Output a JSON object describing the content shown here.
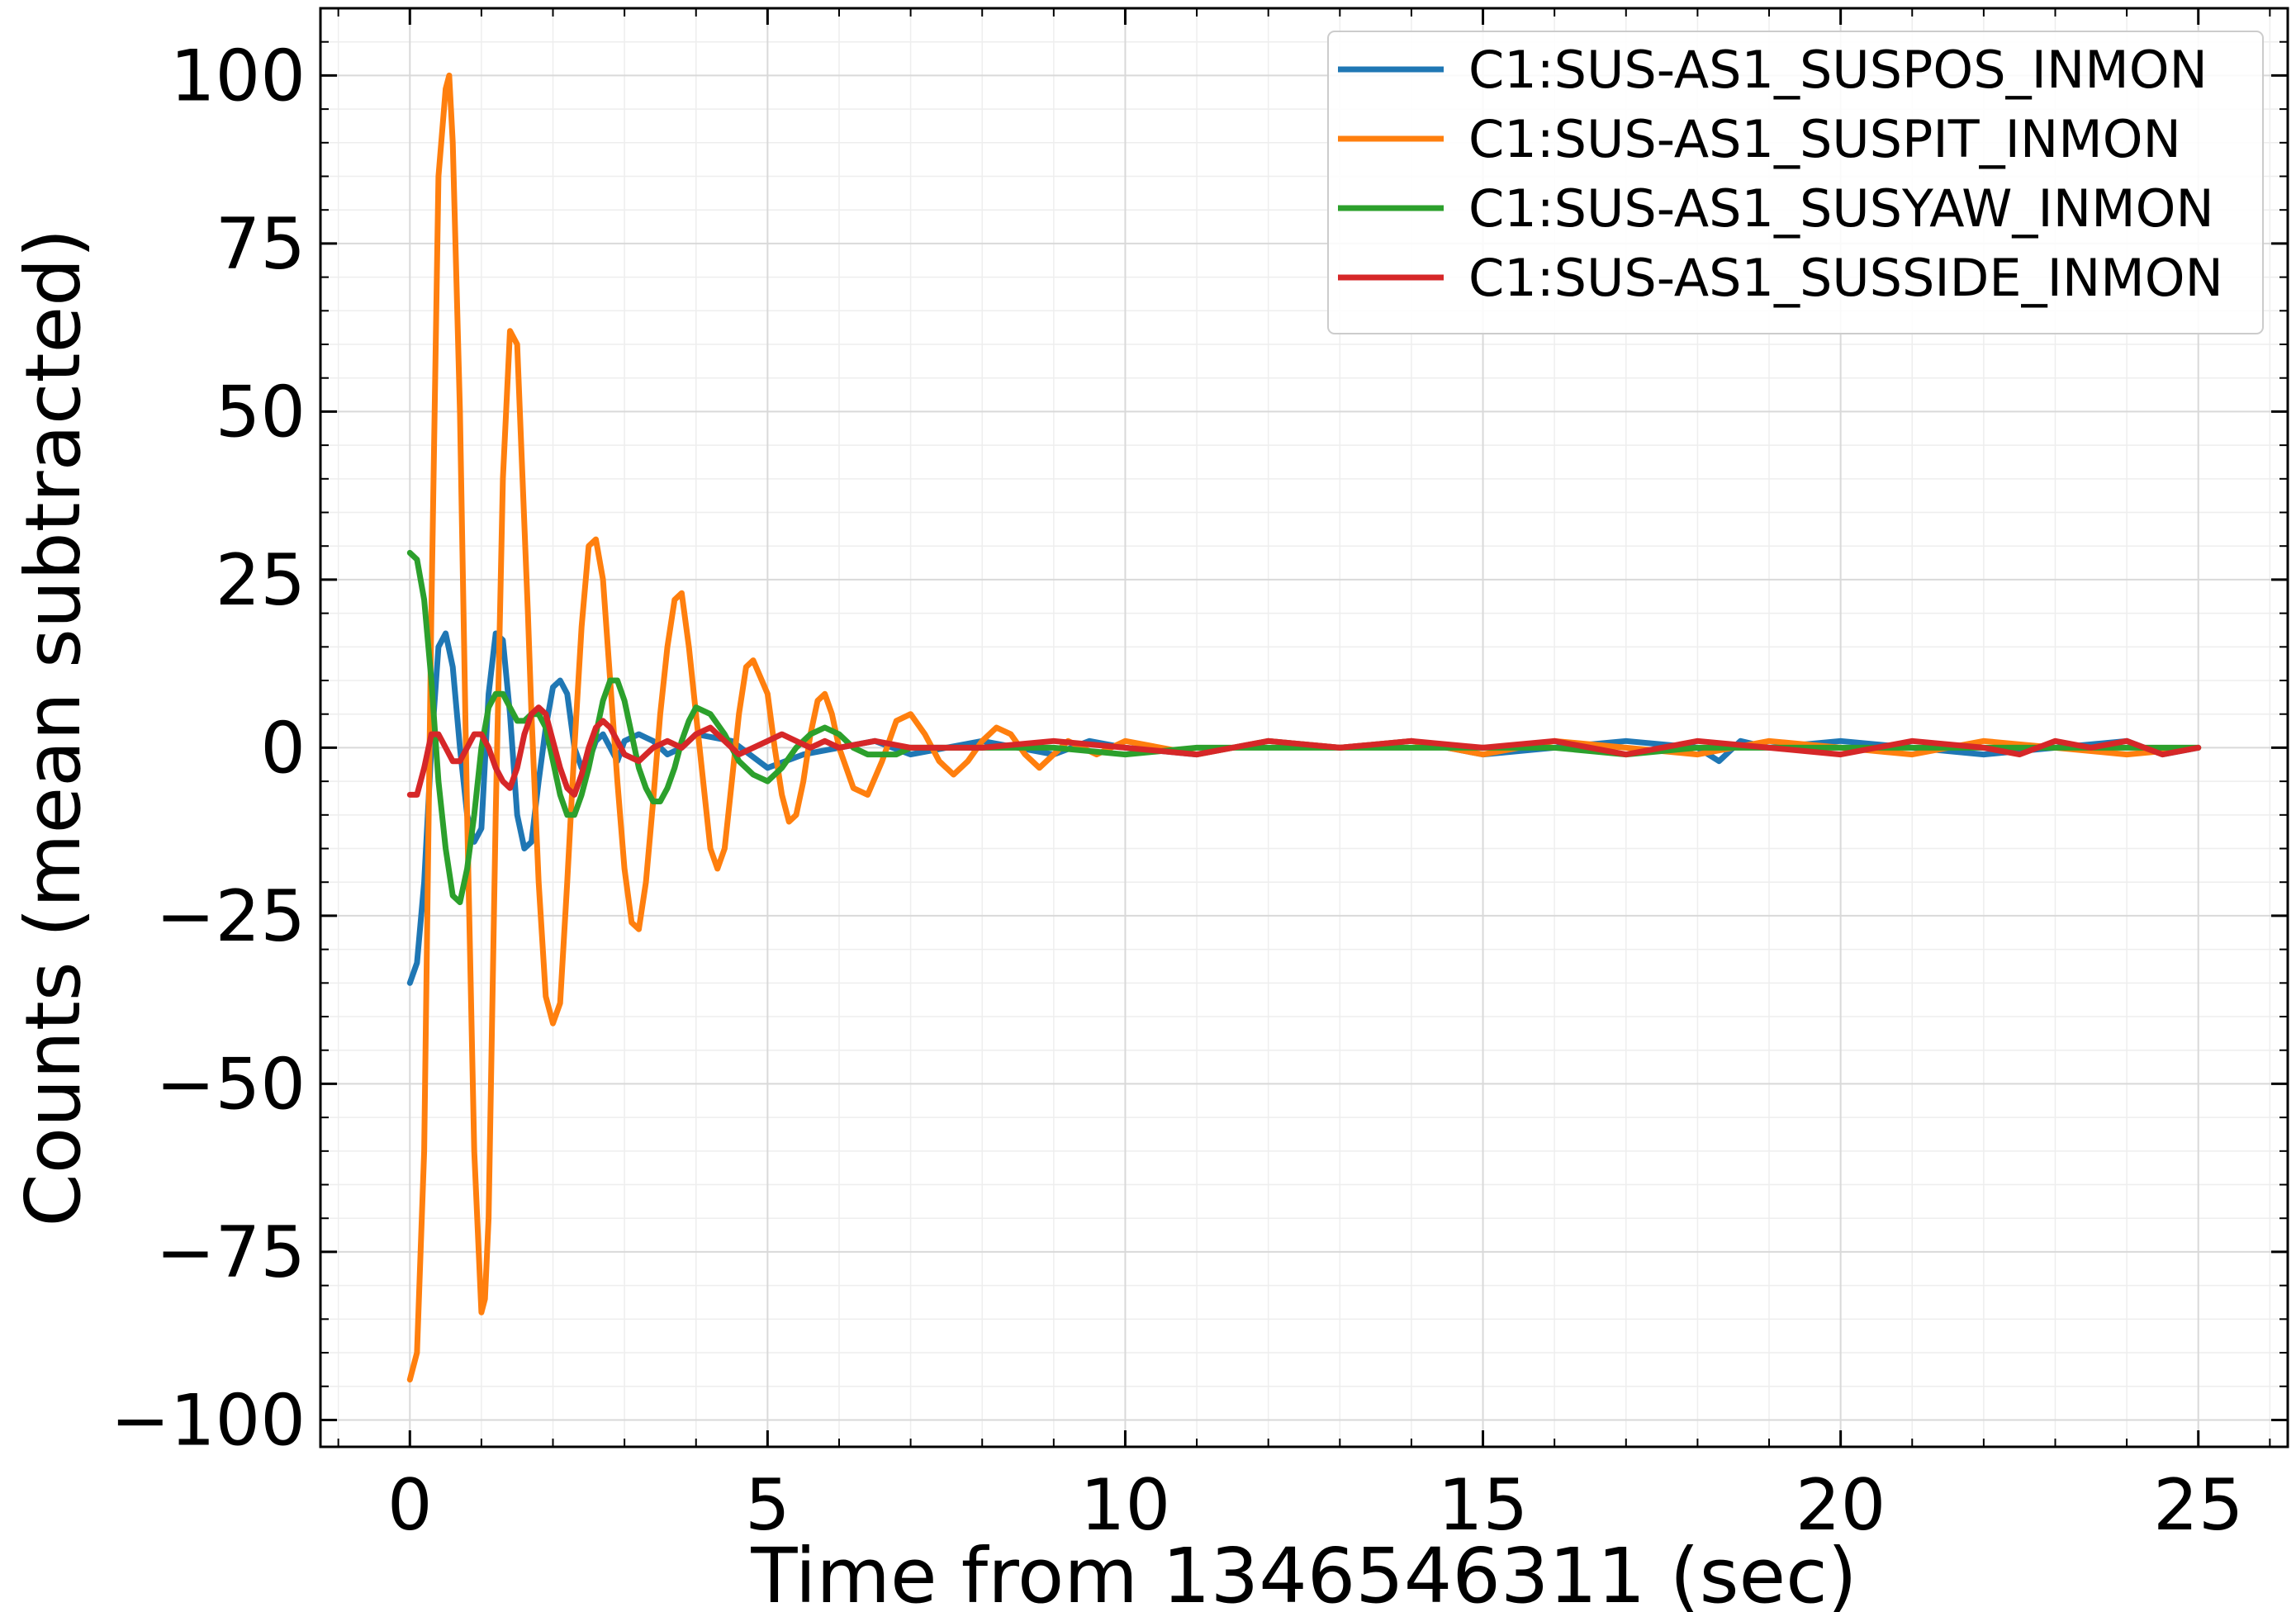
{
  "chart_data": {
    "type": "line",
    "title": "",
    "xlabel": "Time from 1346546311 (sec)",
    "ylabel": "Counts (mean subtracted)",
    "xlim": [
      -1.25,
      26.25
    ],
    "ylim": [
      -104,
      110
    ],
    "xticks": [
      0,
      5,
      10,
      15,
      20,
      25
    ],
    "xtick_labels": [
      "0",
      "5",
      "10",
      "15",
      "20",
      "25"
    ],
    "yticks": [
      -100,
      -75,
      -50,
      -25,
      0,
      25,
      50,
      75,
      100
    ],
    "ytick_labels": [
      "−100",
      "−75",
      "−50",
      "−25",
      "0",
      "25",
      "50",
      "75",
      "100"
    ],
    "grid": true,
    "legend_position": "top-right",
    "series": [
      {
        "name": "C1:SUS-AS1_SUSPOS_INMON",
        "color": "#1f77b4",
        "x": [
          0,
          0.1,
          0.2,
          0.3,
          0.4,
          0.5,
          0.6,
          0.7,
          0.8,
          0.9,
          1.0,
          1.1,
          1.2,
          1.3,
          1.4,
          1.5,
          1.6,
          1.7,
          1.8,
          1.9,
          2.0,
          2.1,
          2.2,
          2.3,
          2.4,
          2.5,
          2.6,
          2.7,
          2.8,
          2.9,
          3.0,
          3.2,
          3.4,
          3.6,
          3.8,
          4.0,
          4.5,
          5.0,
          5.5,
          6.0,
          6.5,
          7.0,
          7.5,
          8.0,
          8.5,
          9.0,
          9.5,
          10,
          11,
          12,
          13,
          14,
          15,
          16,
          17,
          18,
          18.3,
          18.6,
          19,
          20,
          21,
          22,
          23,
          24,
          24.5,
          25
        ],
        "y": [
          -35,
          -32,
          -20,
          0,
          15,
          17,
          12,
          0,
          -10,
          -14,
          -12,
          8,
          17,
          16,
          5,
          -10,
          -15,
          -14,
          -5,
          3,
          9,
          10,
          8,
          0,
          -3,
          -2,
          1,
          2,
          0,
          -2,
          1,
          2,
          1,
          -1,
          0,
          2,
          1,
          -3,
          -1,
          0,
          1,
          -1,
          0,
          1,
          0,
          -1,
          1,
          0,
          -1,
          1,
          0,
          1,
          -1,
          0,
          1,
          0,
          -2,
          1,
          0,
          1,
          0,
          -1,
          0,
          1,
          -1,
          0
        ]
      },
      {
        "name": "C1:SUS-AS1_SUSPIT_INMON",
        "color": "#ff7f0e",
        "x": [
          0,
          0.1,
          0.2,
          0.3,
          0.4,
          0.5,
          0.55,
          0.6,
          0.7,
          0.8,
          0.9,
          1.0,
          1.05,
          1.1,
          1.2,
          1.3,
          1.4,
          1.5,
          1.65,
          1.7,
          1.8,
          1.9,
          2.0,
          2.1,
          2.2,
          2.3,
          2.4,
          2.5,
          2.6,
          2.7,
          2.8,
          2.9,
          3.0,
          3.1,
          3.2,
          3.3,
          3.4,
          3.5,
          3.6,
          3.7,
          3.8,
          3.9,
          4.0,
          4.1,
          4.2,
          4.3,
          4.4,
          4.5,
          4.6,
          4.7,
          4.8,
          5.0,
          5.1,
          5.2,
          5.3,
          5.4,
          5.5,
          5.6,
          5.7,
          5.8,
          5.9,
          6.0,
          6.2,
          6.4,
          6.6,
          6.8,
          7.0,
          7.2,
          7.4,
          7.6,
          7.8,
          8.0,
          8.2,
          8.4,
          8.6,
          8.8,
          9.0,
          9.2,
          9.4,
          9.6,
          10,
          11,
          12,
          13,
          14,
          15,
          16,
          17,
          18,
          19,
          20,
          21,
          22,
          23,
          24,
          25
        ],
        "y": [
          -94,
          -90,
          -60,
          20,
          85,
          98,
          100,
          90,
          50,
          -10,
          -60,
          -84,
          -82,
          -70,
          -10,
          40,
          62,
          60,
          20,
          5,
          -20,
          -37,
          -41,
          -38,
          -20,
          0,
          18,
          30,
          31,
          25,
          10,
          -5,
          -18,
          -26,
          -27,
          -20,
          -8,
          5,
          15,
          22,
          23,
          15,
          5,
          -5,
          -15,
          -18,
          -15,
          -5,
          5,
          12,
          13,
          8,
          0,
          -7,
          -11,
          -10,
          -5,
          2,
          7,
          8,
          5,
          0,
          -6,
          -7,
          -2,
          4,
          5,
          2,
          -2,
          -4,
          -2,
          1,
          3,
          2,
          -1,
          -3,
          -1,
          1,
          0,
          -1,
          1,
          -1,
          1,
          0,
          1,
          -1,
          1,
          0,
          -1,
          1,
          0,
          -1,
          1,
          0,
          -1,
          0
        ]
      },
      {
        "name": "C1:SUS-AS1_SUSYAW_INMON",
        "color": "#2ca02c",
        "x": [
          0,
          0.1,
          0.2,
          0.3,
          0.4,
          0.5,
          0.6,
          0.7,
          0.8,
          0.9,
          1.0,
          1.1,
          1.2,
          1.3,
          1.4,
          1.5,
          1.6,
          1.7,
          1.8,
          1.9,
          2.0,
          2.1,
          2.2,
          2.3,
          2.4,
          2.5,
          2.6,
          2.7,
          2.8,
          2.9,
          3.0,
          3.1,
          3.2,
          3.3,
          3.4,
          3.5,
          3.6,
          3.7,
          3.8,
          3.9,
          4.0,
          4.2,
          4.4,
          4.6,
          4.8,
          5.0,
          5.2,
          5.4,
          5.6,
          5.8,
          6.0,
          6.2,
          6.4,
          6.6,
          6.8,
          7.0,
          7.5,
          8.0,
          9.0,
          10,
          11,
          12,
          13,
          14,
          15,
          16,
          17,
          18,
          19,
          20,
          21,
          22,
          23,
          24,
          25
        ],
        "y": [
          29,
          28,
          22,
          10,
          -5,
          -15,
          -22,
          -23,
          -18,
          -10,
          0,
          6,
          8,
          8,
          6,
          4,
          4,
          5,
          5,
          3,
          -2,
          -7,
          -10,
          -10,
          -7,
          -3,
          2,
          7,
          10,
          10,
          7,
          2,
          -3,
          -6,
          -8,
          -8,
          -6,
          -3,
          1,
          4,
          6,
          5,
          2,
          -2,
          -4,
          -5,
          -3,
          0,
          2,
          3,
          2,
          0,
          -1,
          -1,
          -1,
          0,
          0,
          0,
          0,
          -1,
          0,
          0,
          0,
          0,
          0,
          0,
          -1,
          0,
          0,
          0,
          0,
          0,
          0,
          0,
          0
        ]
      },
      {
        "name": "C1:SUS-AS1_SUSSIDE_INMON",
        "color": "#d62728",
        "x": [
          0,
          0.1,
          0.2,
          0.3,
          0.4,
          0.5,
          0.6,
          0.7,
          0.8,
          0.9,
          1.0,
          1.1,
          1.2,
          1.3,
          1.4,
          1.5,
          1.6,
          1.7,
          1.8,
          1.9,
          2.0,
          2.1,
          2.2,
          2.3,
          2.4,
          2.5,
          2.6,
          2.7,
          2.8,
          2.9,
          3.0,
          3.2,
          3.4,
          3.6,
          3.8,
          4.0,
          4.2,
          4.4,
          4.6,
          4.8,
          5.0,
          5.2,
          5.4,
          5.6,
          5.8,
          6.0,
          6.5,
          7.0,
          8.0,
          9.0,
          10,
          11,
          12,
          13,
          14,
          15,
          16,
          17,
          18,
          19,
          20,
          21,
          22,
          22.5,
          23,
          23.5,
          24,
          24.5,
          25
        ],
        "y": [
          -7,
          -7,
          -3,
          2,
          2,
          0,
          -2,
          -2,
          0,
          2,
          2,
          0,
          -3,
          -5,
          -6,
          -3,
          2,
          5,
          6,
          5,
          1,
          -3,
          -6,
          -7,
          -4,
          0,
          3,
          4,
          3,
          1,
          -1,
          -2,
          0,
          1,
          0,
          2,
          3,
          1,
          -1,
          0,
          1,
          2,
          1,
          0,
          1,
          0,
          1,
          0,
          0,
          1,
          0,
          -1,
          1,
          0,
          1,
          0,
          1,
          -1,
          1,
          0,
          -1,
          1,
          0,
          -1,
          1,
          0,
          1,
          -1,
          0
        ]
      }
    ]
  }
}
